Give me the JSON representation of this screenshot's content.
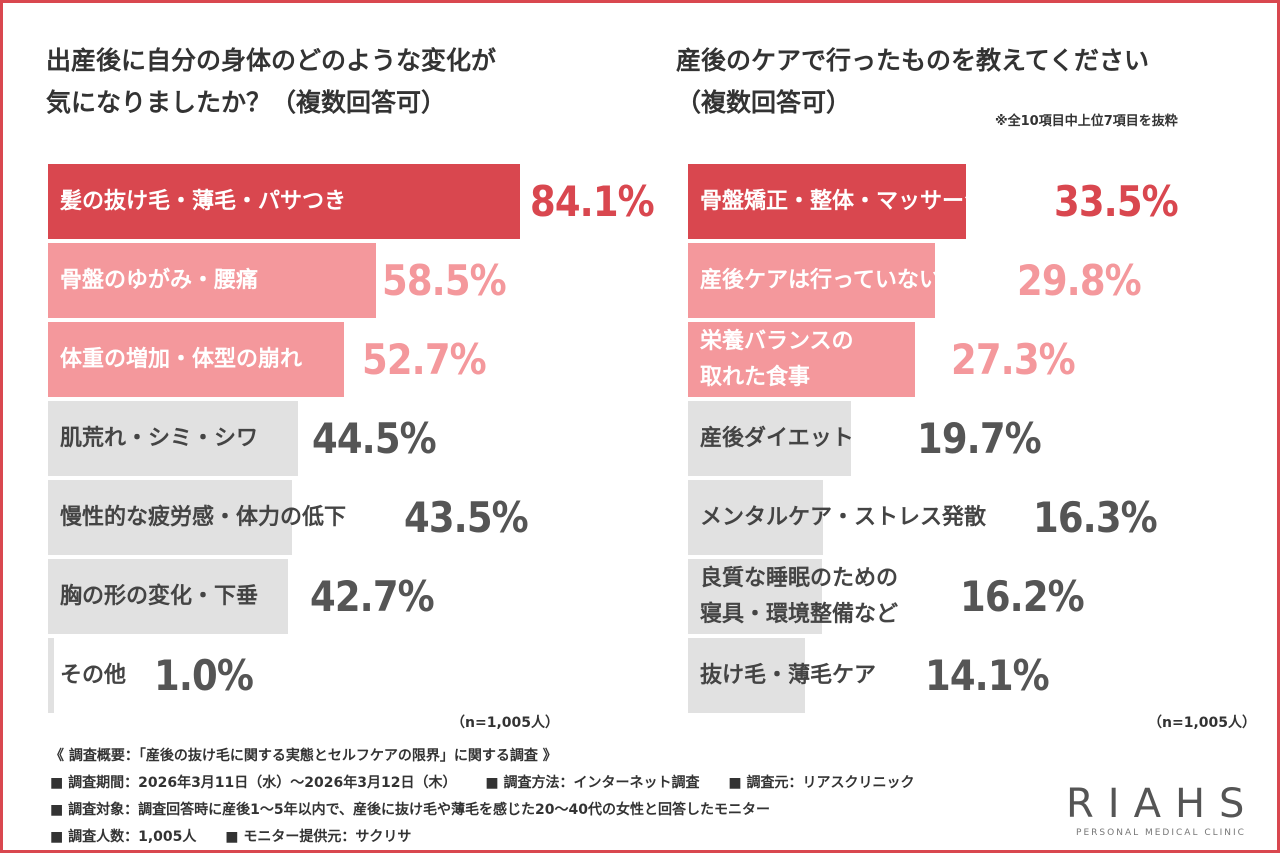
{
  "colors": {
    "top": "#d9474f",
    "mid": "#f4989c",
    "gray": "#e1e1e1",
    "label_top": "#ffffff",
    "label_gray": "#444444",
    "pct_top": "#d9474f",
    "pct_mid": "#f4989c",
    "pct_gray": "#555555"
  },
  "chart_data": [
    {
      "type": "bar",
      "orientation": "horizontal",
      "title_lines": [
        "出産後に自分の身体のどのような変化が",
        "気になりましたか？（複数回答可）"
      ],
      "categories": [
        [
          "髪の抜け毛・薄毛・パサつき"
        ],
        [
          "骨盤のゆがみ・腰痛"
        ],
        [
          "体重の増加・体型の崩れ"
        ],
        [
          "肌荒れ・シミ・シワ"
        ],
        [
          "慢性的な疲労感・体力の低下"
        ],
        [
          "胸の形の変化・下垂"
        ],
        [
          "その他"
        ]
      ],
      "values": [
        84.1,
        58.5,
        52.7,
        44.5,
        43.5,
        42.7,
        1.0
      ],
      "value_labels": [
        "84.1%",
        "58.5%",
        "52.7%",
        "44.5%",
        "43.5%",
        "42.7%",
        "1.0%"
      ],
      "tiers": [
        "top",
        "mid",
        "mid",
        "gray",
        "gray",
        "gray",
        "gray"
      ],
      "unit": "%",
      "sample": "（n=1,005人）"
    },
    {
      "type": "bar",
      "orientation": "horizontal",
      "title_lines": [
        "産後のケアで行ったものを教えてください",
        "（複数回答可）"
      ],
      "note": "※全10項目中上位7項目を抜粋",
      "categories": [
        [
          "骨盤矯正・整体・マッサージ"
        ],
        [
          "産後ケアは行っていない"
        ],
        [
          "栄養バランスの",
          "取れた食事"
        ],
        [
          "産後ダイエット"
        ],
        [
          "メンタルケア・ストレス発散"
        ],
        [
          "良質な睡眠のための",
          "寝具・環境整備など"
        ],
        [
          "抜け毛・薄毛ケア"
        ]
      ],
      "values": [
        33.5,
        29.8,
        27.3,
        19.7,
        16.3,
        16.2,
        14.1
      ],
      "value_labels": [
        "33.5%",
        "29.8%",
        "27.3%",
        "19.7%",
        "16.3%",
        "16.2%",
        "14.1%"
      ],
      "tiers": [
        "top",
        "mid",
        "mid",
        "gray",
        "gray",
        "gray",
        "gray"
      ],
      "unit": "%",
      "sample": "（n=1,005人）"
    }
  ],
  "footer": {
    "heading": "《 調査概要：「産後の抜け毛に関する実態とセルフケアの限界」に関する調査 》",
    "period": "■ 調査期間：2026年3月11日（水）～2026年3月12日（木）",
    "method": "■ 調査方法：インターネット調査",
    "source": "■ 調査元：リアスクリニック",
    "target": "■ 調査対象：調査回答時に産後1～5年以内で、産後に抜け毛や薄毛を感じた20～40代の女性と回答したモニター",
    "count": "■ 調査人数：1,005人",
    "provider": "■ モニター提供元：サクリサ"
  },
  "logo": {
    "word": "RIAHS",
    "tagline": "PERSONAL MEDICAL CLINIC"
  }
}
